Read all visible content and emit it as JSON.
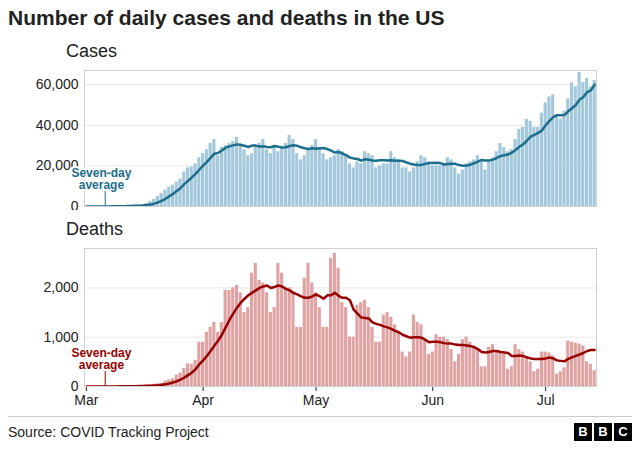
{
  "title": "Number of daily cases and deaths in the US",
  "source": "Source: COVID Tracking Project",
  "logo": "BBC",
  "chart_data": [
    {
      "type": "bar",
      "title": "Cases",
      "categories": [
        "Mar",
        null,
        null,
        null,
        null,
        null,
        null,
        null,
        null,
        null,
        null,
        null,
        null,
        null,
        null,
        null,
        null,
        null,
        null,
        null,
        null,
        null,
        null,
        null,
        null,
        null,
        null,
        null,
        null,
        null,
        null,
        "Apr",
        null,
        null,
        null,
        null,
        null,
        null,
        null,
        null,
        null,
        null,
        null,
        null,
        null,
        null,
        null,
        null,
        null,
        null,
        null,
        null,
        null,
        null,
        null,
        null,
        null,
        null,
        null,
        null,
        null,
        "May",
        null,
        null,
        null,
        null,
        null,
        null,
        null,
        null,
        null,
        null,
        null,
        null,
        null,
        null,
        null,
        null,
        null,
        null,
        null,
        null,
        null,
        null,
        null,
        null,
        null,
        null,
        null,
        null,
        null,
        null,
        "Jun",
        null,
        null,
        null,
        null,
        null,
        null,
        null,
        null,
        null,
        null,
        null,
        null,
        null,
        null,
        null,
        null,
        null,
        null,
        null,
        null,
        null,
        null,
        null,
        null,
        null,
        null,
        null,
        null,
        null,
        "Jul",
        null,
        null,
        null,
        null,
        null,
        null,
        null,
        null,
        null,
        null,
        null,
        null,
        null
      ],
      "ylim": [
        0,
        67000
      ],
      "yticks": [
        0,
        {
          "value": 20000,
          "label": "20,000"
        },
        {
          "value": 40000,
          "label": "40,000"
        },
        {
          "value": 60000,
          "label": "60,000"
        }
      ],
      "grid": true,
      "tick_labels": "y",
      "series": [
        {
          "type": "bar",
          "color": "#a3c8dc",
          "values": [
            10,
            20,
            30,
            40,
            50,
            60,
            100,
            100,
            200,
            250,
            300,
            400,
            500,
            600,
            700,
            900,
            1500,
            2500,
            3500,
            5000,
            6500,
            8000,
            9500,
            10500,
            12000,
            13500,
            17000,
            19000,
            19500,
            21000,
            24000,
            26000,
            28000,
            31000,
            33000,
            25000,
            29000,
            30000,
            31000,
            32000,
            34000,
            31000,
            28000,
            25000,
            26000,
            30000,
            31000,
            33000,
            28000,
            26000,
            29000,
            27000,
            29000,
            31000,
            35000,
            33000,
            26000,
            23000,
            25000,
            28000,
            30000,
            33000,
            29000,
            26000,
            23000,
            24000,
            25000,
            28000,
            27000,
            25000,
            21000,
            19000,
            22000,
            21000,
            27000,
            26000,
            25000,
            19000,
            20000,
            21000,
            21000,
            27000,
            24000,
            23000,
            19000,
            19000,
            17000,
            19000,
            22000,
            25000,
            24000,
            22000,
            20000,
            20000,
            20000,
            21000,
            24000,
            23000,
            19000,
            16000,
            18000,
            21000,
            22000,
            23000,
            25000,
            22000,
            18000,
            22000,
            24000,
            27000,
            31000,
            29000,
            27000,
            28000,
            33000,
            38000,
            39000,
            43000,
            42000,
            39000,
            39000,
            46000,
            51000,
            54000,
            55000,
            45000,
            43000,
            47000,
            53000,
            61000,
            59000,
            66000,
            61000,
            63000,
            59000,
            62000
          ]
        },
        {
          "name": "Seven-day average",
          "type": "line",
          "color": "#1d6d8c",
          "values": [
            0,
            10,
            20,
            30,
            40,
            40,
            60,
            70,
            100,
            120,
            160,
            210,
            270,
            340,
            410,
            520,
            690,
            990,
            1400,
            2000,
            2800,
            3800,
            5000,
            6200,
            7600,
            9000,
            11000,
            12600,
            14300,
            16100,
            18100,
            20100,
            22000,
            24000,
            26000,
            26400,
            27600,
            29000,
            29600,
            30100,
            30600,
            30300,
            29900,
            29300,
            30000,
            30000,
            29600,
            29700,
            29300,
            29200,
            29800,
            29400,
            29100,
            29200,
            29800,
            30200,
            29900,
            29200,
            28700,
            28300,
            28700,
            28500,
            28700,
            28800,
            28300,
            27500,
            26600,
            26900,
            26100,
            25300,
            24100,
            23700,
            23400,
            22600,
            23300,
            23000,
            22700,
            22500,
            22800,
            22800,
            22700,
            22800,
            22600,
            22600,
            22400,
            21700,
            21100,
            20700,
            20400,
            20500,
            21000,
            21400,
            21400,
            21600,
            21400,
            20700,
            20900,
            21100,
            21000,
            20400,
            20100,
            20200,
            20600,
            21300,
            22100,
            22900,
            22700,
            22700,
            23100,
            23900,
            24800,
            25300,
            25600,
            26500,
            27800,
            29400,
            30600,
            32400,
            34400,
            35300,
            36300,
            37400,
            40000,
            42200,
            44000,
            45000,
            45000,
            45100,
            46900,
            48400,
            50000,
            52600,
            54000,
            56300,
            57200,
            60000
          ]
        }
      ]
    },
    {
      "type": "bar",
      "title": "Deaths",
      "categories": [
        "Mar",
        null,
        null,
        null,
        null,
        null,
        null,
        null,
        null,
        null,
        null,
        null,
        null,
        null,
        null,
        null,
        null,
        null,
        null,
        null,
        null,
        null,
        null,
        null,
        null,
        null,
        null,
        null,
        null,
        null,
        null,
        "Apr",
        null,
        null,
        null,
        null,
        null,
        null,
        null,
        null,
        null,
        null,
        null,
        null,
        null,
        null,
        null,
        null,
        null,
        null,
        null,
        null,
        null,
        null,
        null,
        null,
        null,
        null,
        null,
        null,
        null,
        "May",
        null,
        null,
        null,
        null,
        null,
        null,
        null,
        null,
        null,
        null,
        null,
        null,
        null,
        null,
        null,
        null,
        null,
        null,
        null,
        null,
        null,
        null,
        null,
        null,
        null,
        null,
        null,
        null,
        null,
        null,
        "Jun",
        null,
        null,
        null,
        null,
        null,
        null,
        null,
        null,
        null,
        null,
        null,
        null,
        null,
        null,
        null,
        null,
        null,
        null,
        null,
        null,
        null,
        null,
        null,
        null,
        null,
        null,
        null,
        null,
        null,
        "Jul",
        null,
        null,
        null,
        null,
        null,
        null,
        null,
        null,
        null,
        null,
        null,
        null,
        null
      ],
      "ylim": [
        0,
        2800
      ],
      "yticks": [
        0,
        {
          "value": 1000,
          "label": "1,000"
        },
        {
          "value": 2000,
          "label": "2,000"
        }
      ],
      "grid": true,
      "series": [
        {
          "type": "bar",
          "color": "#e0a3a3",
          "values": [
            0,
            2,
            3,
            2,
            1,
            2,
            3,
            2,
            4,
            5,
            6,
            8,
            10,
            12,
            12,
            20,
            25,
            30,
            45,
            55,
            60,
            110,
            130,
            160,
            230,
            270,
            370,
            460,
            450,
            530,
            900,
            900,
            1100,
            1200,
            1300,
            1100,
            1300,
            1950,
            1950,
            2000,
            2050,
            1900,
            1500,
            1600,
            2300,
            2500,
            2150,
            2100,
            1900,
            1500,
            1600,
            2500,
            2300,
            2000,
            2000,
            1900,
            1200,
            1200,
            2200,
            2500,
            2100,
            1900,
            1600,
            1200,
            1200,
            2600,
            2700,
            2400,
            1700,
            1600,
            1000,
            1000,
            1650,
            1700,
            1750,
            1600,
            1200,
            900,
            900,
            1450,
            1500,
            1400,
            1250,
            1100,
            700,
            600,
            700,
            1450,
            1300,
            1250,
            950,
            650,
            700,
            1050,
            1000,
            1000,
            950,
            750,
            500,
            650,
            950,
            1000,
            900,
            800,
            750,
            400,
            400,
            800,
            850,
            700,
            700,
            650,
            350,
            400,
            850,
            750,
            700,
            600,
            500,
            300,
            350,
            700,
            700,
            680,
            620,
            250,
            300,
            380,
            920,
            900,
            880,
            860,
            820,
            500,
            450,
            320
          ]
        },
        {
          "name": "Seven-day average",
          "type": "line",
          "color": "#990000",
          "values": [
            0,
            0,
            1,
            1,
            1,
            2,
            2,
            2,
            2,
            3,
            3,
            4,
            5,
            7,
            8,
            10,
            13,
            17,
            22,
            27,
            34,
            47,
            62,
            80,
            107,
            138,
            180,
            230,
            280,
            350,
            450,
            530,
            620,
            720,
            830,
            930,
            1050,
            1200,
            1350,
            1480,
            1600,
            1700,
            1780,
            1850,
            1900,
            1950,
            2000,
            2030,
            2050,
            2000,
            2020,
            2050,
            2030,
            1980,
            1950,
            1900,
            1870,
            1830,
            1800,
            1800,
            1830,
            1870,
            1830,
            1780,
            1850,
            1850,
            1900,
            1840,
            1800,
            1800,
            1750,
            1560,
            1480,
            1400,
            1390,
            1380,
            1300,
            1270,
            1250,
            1220,
            1200,
            1170,
            1130,
            1100,
            1050,
            1020,
            990,
            1000,
            1000,
            990,
            950,
            900,
            910,
            910,
            900,
            880,
            870,
            870,
            850,
            840,
            840,
            830,
            820,
            800,
            760,
            700,
            690,
            700,
            720,
            720,
            700,
            690,
            680,
            620,
            620,
            630,
            620,
            590,
            570,
            560,
            560,
            560,
            570,
            590,
            570,
            530,
            520,
            510,
            560,
            590,
            620,
            650,
            680,
            720,
            740,
            740
          ]
        }
      ]
    }
  ]
}
